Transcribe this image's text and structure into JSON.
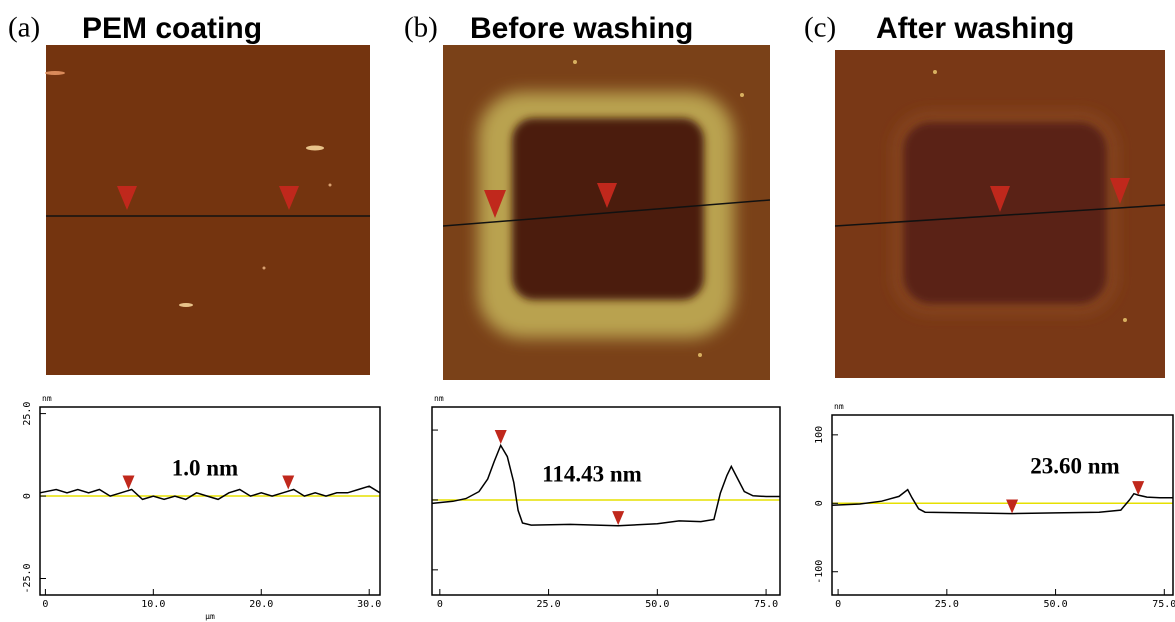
{
  "chart_data": [
    {
      "type": "line",
      "panel_label": "(a)",
      "title": "PEM coating",
      "annotation": "1.0 nm",
      "y_label": "nm",
      "x_label": "µm",
      "xlim": [
        -0.5,
        31
      ],
      "ylim": [
        -30,
        27
      ],
      "xticks": [
        0,
        {
          "value": 10,
          "label": "10.0"
        },
        {
          "value": 20,
          "label": "20.0"
        },
        {
          "value": 30,
          "label": "30.0"
        }
      ],
      "yticks": [
        {
          "value": -25,
          "label": "-25.0"
        },
        0,
        {
          "value": 25,
          "label": "25.0"
        }
      ],
      "tick_labels": true,
      "color": "#000000",
      "zero_line_color": "#e6e000",
      "marker_color": "#c0281c",
      "x": [
        -0.5,
        1,
        2,
        3,
        4,
        5,
        6,
        7,
        8,
        9,
        10,
        11,
        12,
        13,
        14,
        15,
        16,
        17,
        18,
        19,
        20,
        21,
        22,
        23,
        24,
        25,
        26,
        27,
        28,
        29,
        30,
        31
      ],
      "values": [
        1,
        2,
        1,
        2,
        1,
        2,
        0,
        1,
        2,
        -1,
        0,
        -1,
        0,
        -1,
        1,
        0,
        -1,
        1,
        2,
        0,
        1,
        0,
        1,
        2,
        0,
        1,
        0,
        1,
        1,
        2,
        3,
        1
      ],
      "markers": [
        {
          "x": 7.7,
          "y": 2
        },
        {
          "x": 22.5,
          "y": 2
        }
      ]
    },
    {
      "type": "line",
      "panel_label": "(b)",
      "title": "Before washing",
      "annotation": "114.43 nm",
      "y_label": "nm",
      "xlim": [
        -1.8,
        78.2
      ],
      "ylim": [
        -136,
        133
      ],
      "xticks": [
        0,
        {
          "value": 25,
          "label": "25.0"
        },
        {
          "value": 50,
          "label": "50.0"
        },
        {
          "value": 75,
          "label": "75.0"
        }
      ],
      "yticks": [
        -100,
        0,
        100
      ],
      "tick_labels": false,
      "color": "#000000",
      "zero_line_color": "#e6e000",
      "marker_color": "#c0281c",
      "x": [
        -1.8,
        3,
        6,
        9,
        11,
        12.5,
        14,
        15.5,
        17,
        18,
        19,
        21,
        30,
        41,
        50,
        55,
        60,
        63,
        64.5,
        66,
        67,
        68.5,
        70,
        72,
        75,
        78.2
      ],
      "values": [
        -5,
        -2,
        2,
        12,
        30,
        55,
        78,
        62,
        25,
        -15,
        -33,
        -36,
        -35,
        -37,
        -34,
        -30,
        -31,
        -28,
        10,
        35,
        48,
        30,
        12,
        6,
        5,
        5
      ],
      "markers": [
        {
          "x": 14,
          "y": 80
        },
        {
          "x": 41,
          "y": -36
        }
      ]
    },
    {
      "type": "line",
      "panel_label": "(c)",
      "title": "After washing",
      "annotation": "23.60 nm",
      "y_label": "nm",
      "xlim": [
        -1.4,
        77
      ],
      "ylim": [
        -134,
        129
      ],
      "xticks": [
        0,
        {
          "value": 25,
          "label": "25.0"
        },
        {
          "value": 50,
          "label": "50.0"
        },
        {
          "value": 75,
          "label": "75.0"
        }
      ],
      "yticks": [
        -100,
        0,
        100
      ],
      "tick_labels": true,
      "color": "#000000",
      "zero_line_color": "#e6e000",
      "marker_color": "#c0281c",
      "x": [
        -1.4,
        5,
        10,
        14,
        16,
        17,
        18.5,
        20,
        30,
        40,
        50,
        60,
        65,
        67,
        68,
        69,
        71,
        74,
        77
      ],
      "values": [
        -3,
        -1,
        3,
        10,
        20,
        8,
        -8,
        -13,
        -14,
        -15,
        -14,
        -13,
        -10,
        5,
        14,
        12,
        9,
        8,
        8
      ],
      "markers": [
        {
          "x": 40,
          "y": -15
        },
        {
          "x": 69,
          "y": 12
        }
      ]
    }
  ]
}
